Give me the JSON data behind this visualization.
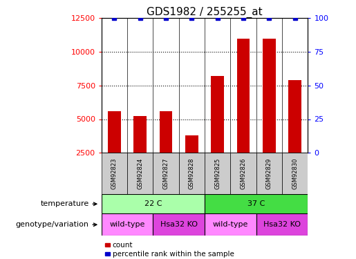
{
  "title": "GDS1982 / 255255_at",
  "samples": [
    "GSM92823",
    "GSM92824",
    "GSM92827",
    "GSM92828",
    "GSM92825",
    "GSM92826",
    "GSM92829",
    "GSM92830"
  ],
  "counts": [
    5600,
    5250,
    5600,
    3800,
    8200,
    11000,
    11000,
    7900
  ],
  "percentile_ranks": [
    100,
    100,
    100,
    100,
    100,
    100,
    100,
    100
  ],
  "ylim_left": [
    2500,
    12500
  ],
  "ylim_right": [
    0,
    100
  ],
  "yticks_left": [
    2500,
    5000,
    7500,
    10000,
    12500
  ],
  "yticks_right": [
    0,
    25,
    50,
    75,
    100
  ],
  "bar_color": "#cc0000",
  "dot_color": "#0000cc",
  "temperature_groups": [
    {
      "label": "22 C",
      "start": 0,
      "end": 4,
      "color": "#aaffaa"
    },
    {
      "label": "37 C",
      "start": 4,
      "end": 8,
      "color": "#44dd44"
    }
  ],
  "genotype_groups": [
    {
      "label": "wild-type",
      "start": 0,
      "end": 2,
      "color": "#ff88ff"
    },
    {
      "label": "Hsa32 KO",
      "start": 2,
      "end": 4,
      "color": "#dd44dd"
    },
    {
      "label": "wild-type",
      "start": 4,
      "end": 6,
      "color": "#ff88ff"
    },
    {
      "label": "Hsa32 KO",
      "start": 6,
      "end": 8,
      "color": "#dd44dd"
    }
  ],
  "row_labels": [
    "temperature",
    "genotype/variation"
  ],
  "legend_items": [
    {
      "label": "count",
      "color": "#cc0000"
    },
    {
      "label": "percentile rank within the sample",
      "color": "#0000cc"
    }
  ],
  "title_fontsize": 11,
  "tick_fontsize": 8,
  "sample_fontsize": 6,
  "row_label_fontsize": 8,
  "group_label_fontsize": 8,
  "legend_fontsize": 7.5,
  "bar_width": 0.5,
  "dot_size": 4,
  "grid_dotted_values": [
    5000,
    7500,
    10000
  ],
  "sample_bg_color": "#cccccc"
}
